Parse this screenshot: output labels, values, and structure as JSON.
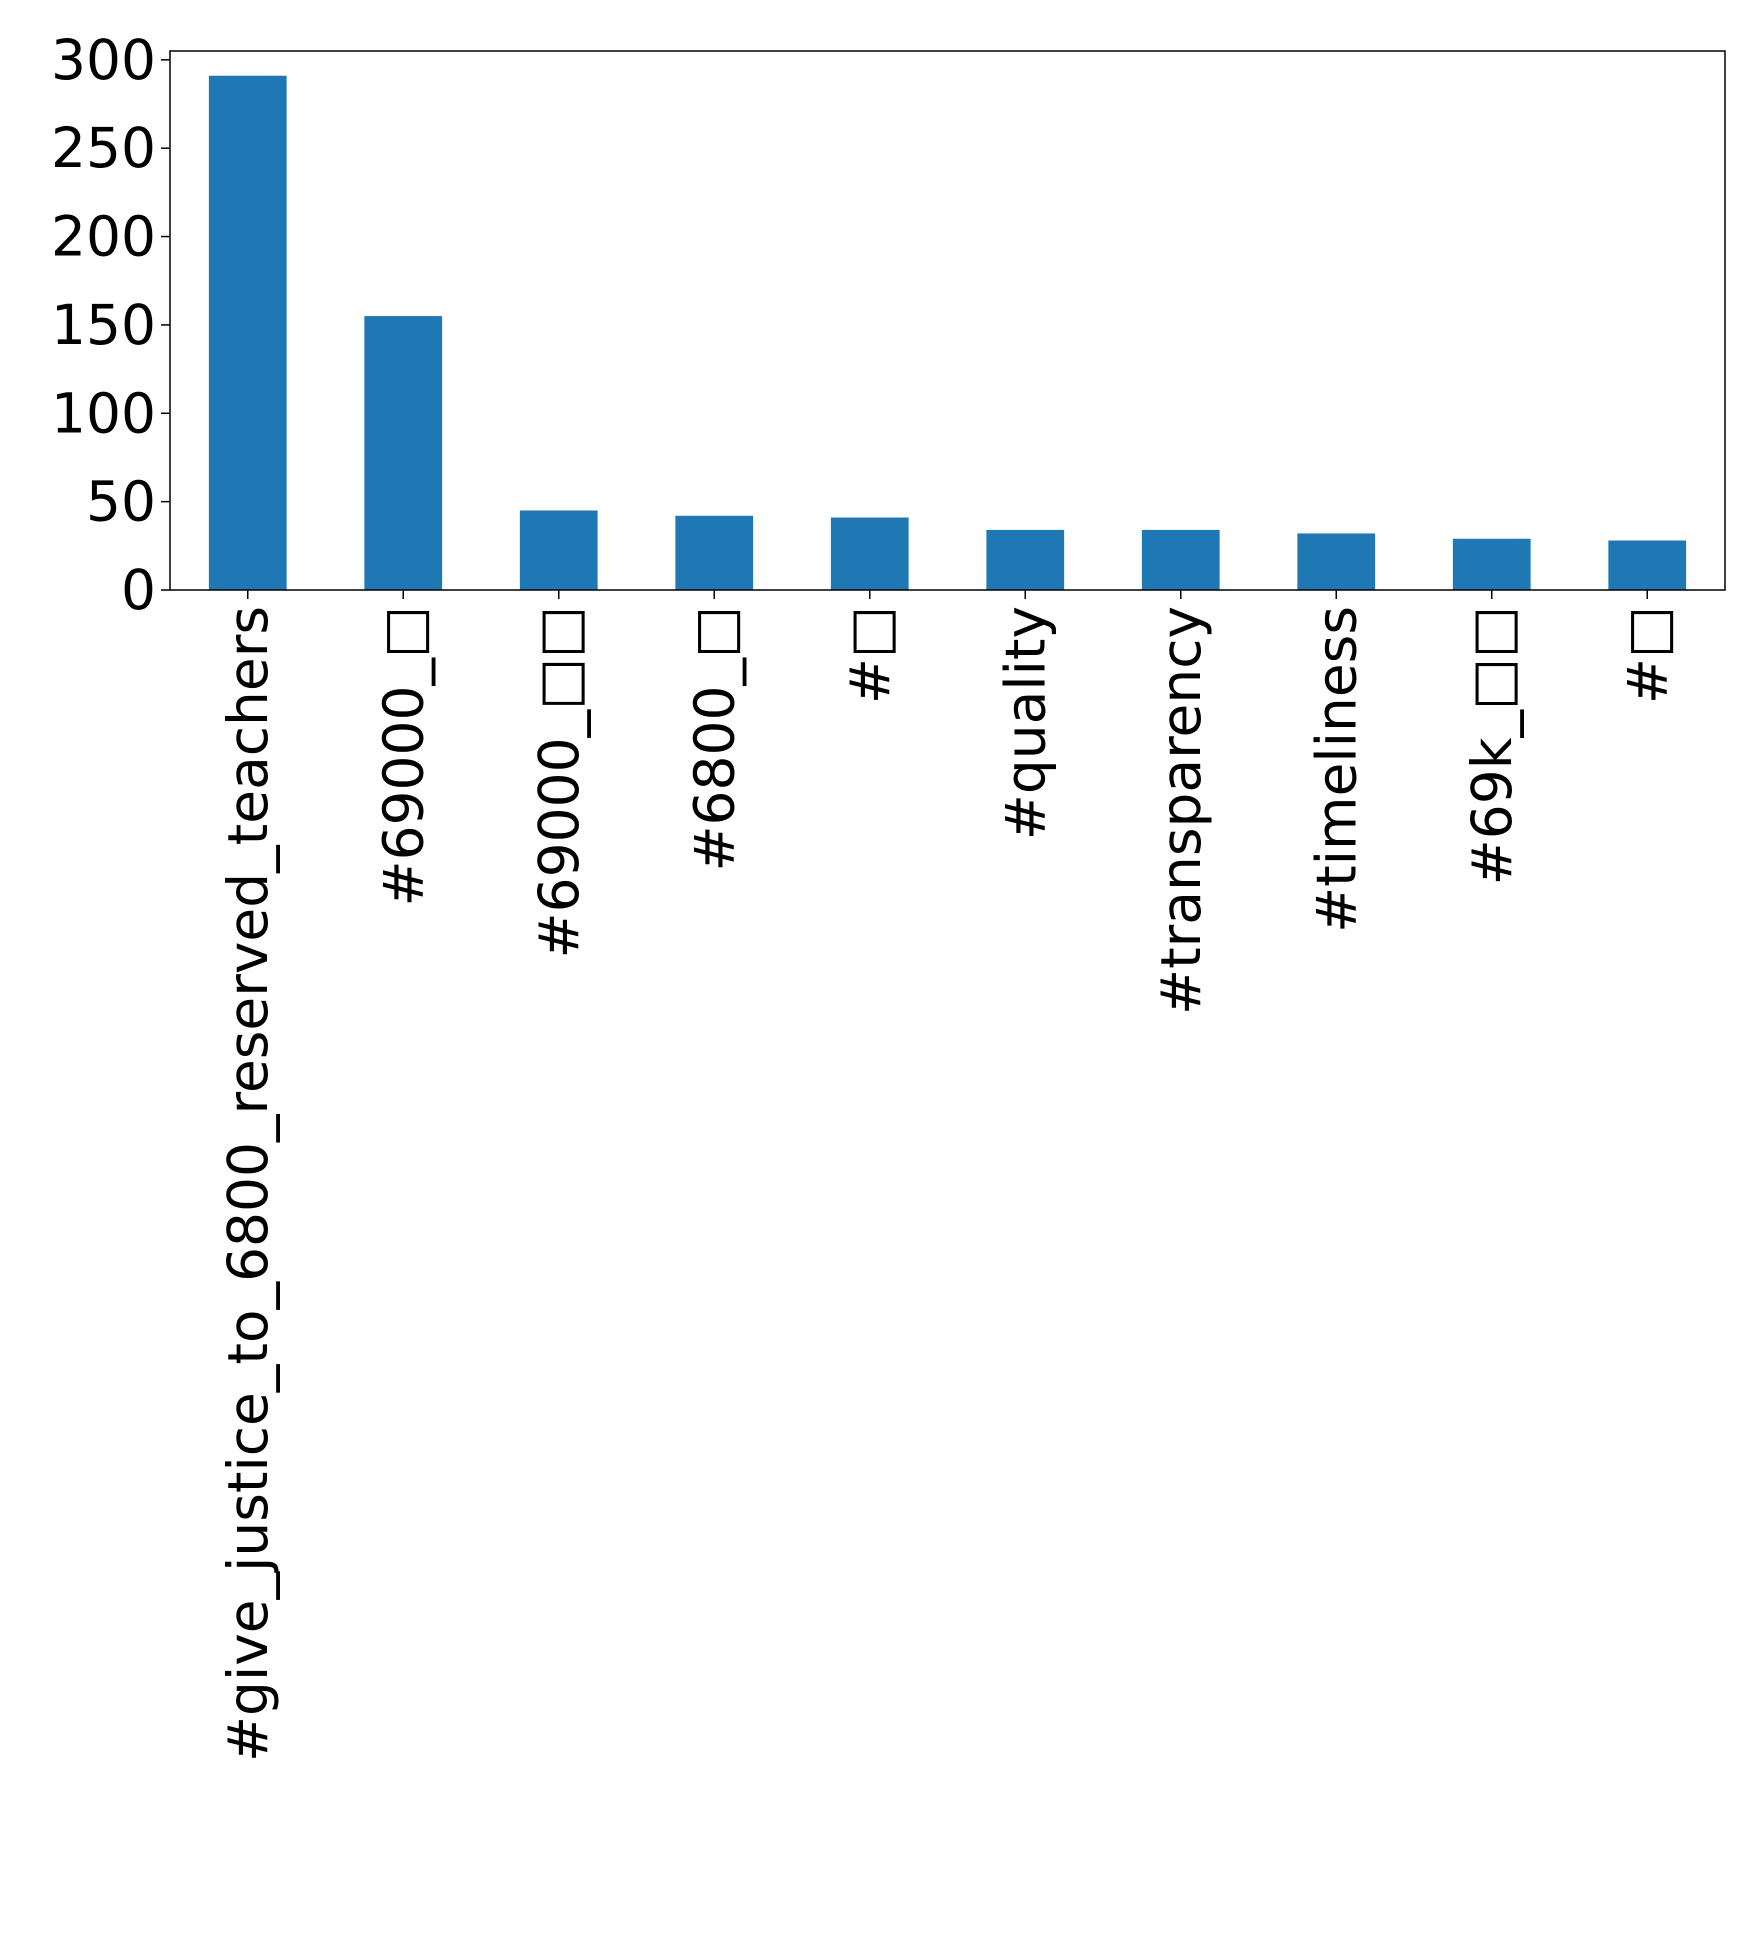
{
  "chart_data": {
    "type": "bar",
    "title": "",
    "xlabel": "",
    "ylabel": "",
    "categories": [
      "#give_justice_to_6800_reserved_teachers",
      "#69000_□",
      "#69000_□□",
      "#6800_□",
      "#□",
      "#quality",
      "#transparency",
      "#timeliness",
      "#69k_□□",
      "#□"
    ],
    "values": [
      291,
      155,
      45,
      42,
      41,
      34,
      34,
      32,
      29,
      28
    ],
    "ylim": [
      0,
      305
    ],
    "yticks": [
      0,
      50,
      100,
      150,
      200,
      250,
      300
    ],
    "bar_color": "#1f77b4",
    "grid": false,
    "legend": "none"
  }
}
